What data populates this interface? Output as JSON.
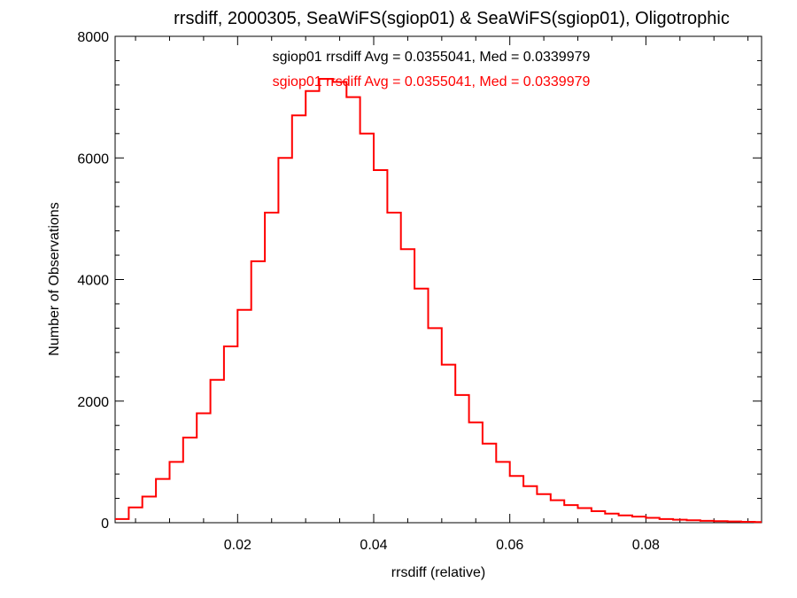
{
  "chart_data": {
    "type": "histogram-step",
    "title": "rrsdiff, 2000305, SeaWiFS(sgiop01) & SeaWiFS(sgiop01), Oligotrophic",
    "xlabel": "rrsdiff (relative)",
    "ylabel": "Number of Observations",
    "xlim": [
      0.002,
      0.097
    ],
    "ylim": [
      0,
      8000
    ],
    "xticks": [
      0.02,
      0.04,
      0.06,
      0.08
    ],
    "xtick_labels": [
      "0.02",
      "0.04",
      "0.06",
      "0.08"
    ],
    "yticks": [
      0,
      2000,
      4000,
      6000,
      8000
    ],
    "ytick_labels": [
      "0",
      "2000",
      "4000",
      "6000",
      "8000"
    ],
    "annotations": [
      {
        "text": "sgiop01 rrsdiff Avg = 0.0355041, Med = 0.0339979",
        "color": "#000000"
      },
      {
        "text": "sgiop01 rrsdiff Avg = 0.0355041, Med = 0.0339979",
        "color": "#ff0000"
      }
    ],
    "series": [
      {
        "color": "#ff0000",
        "x": [
          0.002,
          0.004,
          0.006,
          0.008,
          0.01,
          0.012,
          0.014,
          0.016,
          0.018,
          0.02,
          0.022,
          0.024,
          0.026,
          0.028,
          0.03,
          0.032,
          0.034,
          0.036,
          0.038,
          0.04,
          0.042,
          0.044,
          0.046,
          0.048,
          0.05,
          0.052,
          0.054,
          0.056,
          0.058,
          0.06,
          0.062,
          0.064,
          0.066,
          0.068,
          0.07,
          0.072,
          0.074,
          0.076,
          0.078,
          0.08,
          0.082,
          0.084,
          0.086,
          0.088,
          0.09,
          0.092,
          0.094,
          0.096,
          0.097
        ],
        "y": [
          60,
          250,
          430,
          720,
          1000,
          1400,
          1800,
          2350,
          2900,
          3500,
          4300,
          5100,
          6000,
          6700,
          7100,
          7300,
          7250,
          7000,
          6400,
          5800,
          5100,
          4500,
          3850,
          3200,
          2600,
          2100,
          1650,
          1300,
          1000,
          770,
          600,
          470,
          370,
          290,
          240,
          190,
          150,
          120,
          100,
          80,
          60,
          50,
          40,
          30,
          25,
          20,
          15,
          10,
          10
        ]
      }
    ]
  }
}
